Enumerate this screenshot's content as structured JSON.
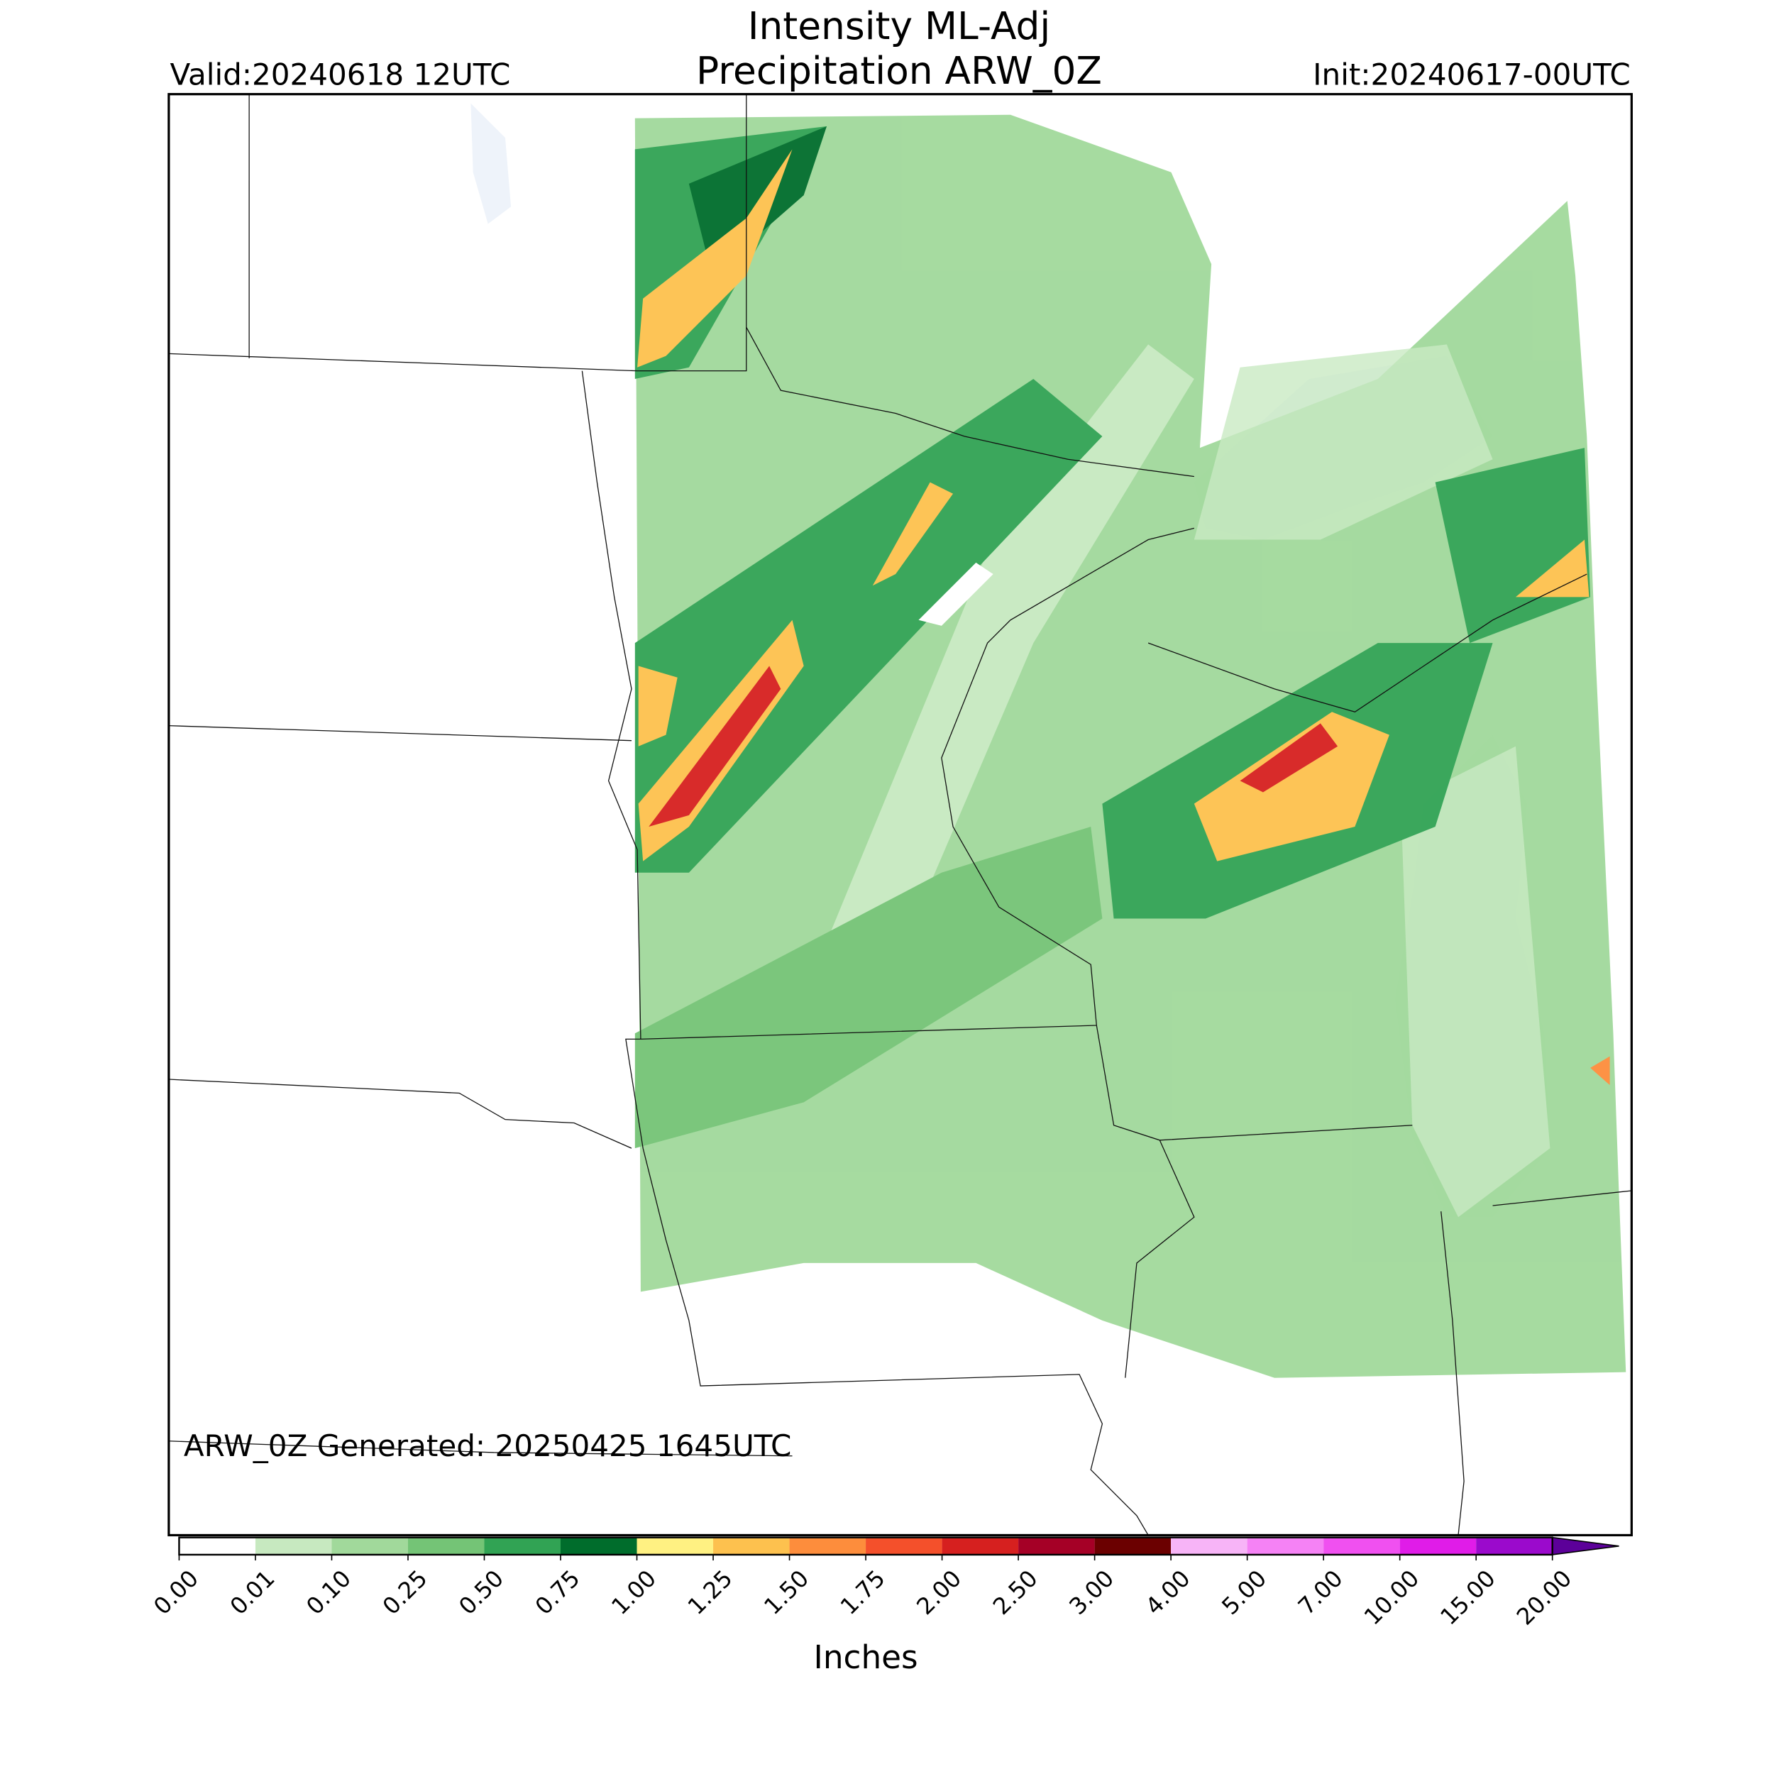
{
  "header": {
    "title_line1": "Intensity ML-Adj",
    "title_line2": "Precipitation ARW_0Z",
    "valid": "Valid:20240618 12UTC",
    "init": "Init:20240617-00UTC"
  },
  "footer": {
    "generated": "ARW_0Z Generated: 20250425 1645UTC"
  },
  "colorbar": {
    "label": "Inches",
    "ticks": [
      "0.00",
      "0.01",
      "0.10",
      "0.25",
      "0.50",
      "0.75",
      "1.00",
      "1.25",
      "1.50",
      "1.75",
      "2.00",
      "2.50",
      "3.00",
      "4.00",
      "5.00",
      "7.00",
      "10.00",
      "15.00",
      "20.00"
    ],
    "colors": [
      "#ffffff",
      "#c7e9c0",
      "#a1d99b",
      "#74c476",
      "#31a354",
      "#006d2c",
      "#fff182",
      "#fdc14e",
      "#fd8d3c",
      "#f4502b",
      "#d6201f",
      "#a50026",
      "#6b0000",
      "#f7b4f7",
      "#f582f5",
      "#f050f0",
      "#e01ce8",
      "#9b0acc"
    ],
    "extend_color": "#5c0099"
  }
}
